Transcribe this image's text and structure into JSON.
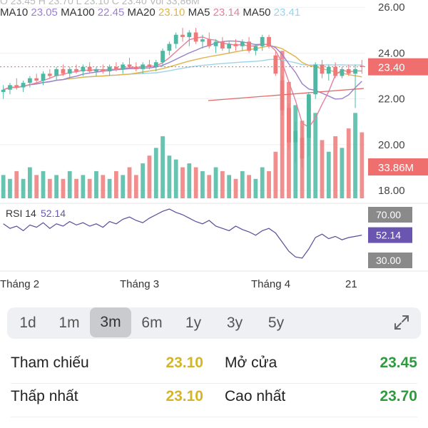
{
  "ohlc_legend": "O 23.45  H 23.70  L 23.10  C 23.40  Vol 33,86M",
  "ma_legend": [
    {
      "label": "MA10",
      "value": "23.05",
      "color": "#9b7fd0"
    },
    {
      "label": "MA100",
      "value": "22.45",
      "color": "#9b7fd0"
    },
    {
      "label": "MA20",
      "value": "23.10",
      "color": "#e0b24a"
    },
    {
      "label": "MA5",
      "value": "23.14",
      "color": "#e77f9a"
    },
    {
      "label": "MA50",
      "value": "23.41",
      "color": "#9ed3ea"
    }
  ],
  "price_axis": [
    "26.00",
    "24.00",
    "22.00",
    "20.00",
    "18.00"
  ],
  "current_price": "23.40",
  "volume_badge": "33.86M",
  "rsi": {
    "label": "RSI 14",
    "value": "52.14",
    "levels": [
      "70.00",
      "30.00"
    ]
  },
  "time_axis": [
    "Tháng 2",
    "Tháng 3",
    "Tháng 4",
    "21"
  ],
  "periods": [
    {
      "label": "1d",
      "active": false
    },
    {
      "label": "1m",
      "active": false
    },
    {
      "label": "3m",
      "active": true
    },
    {
      "label": "6m",
      "active": false
    },
    {
      "label": "1y",
      "active": false
    },
    {
      "label": "3y",
      "active": false
    },
    {
      "label": "5y",
      "active": false
    }
  ],
  "stats": {
    "ref_label": "Tham chiếu",
    "ref_value": "23.10",
    "open_label": "Mở cửa",
    "open_value": "23.45",
    "low_label": "Thấp nhất",
    "low_value": "23.10",
    "high_label": "Cao nhất",
    "high_value": "23.70"
  },
  "colors": {
    "up": "#4fb8a3",
    "down": "#ef7a7a",
    "rsi_line": "#5b4b9a",
    "price_badge": "#ef6f6f",
    "rsi_badge": "#6a55b0",
    "gray_badge": "#8a8a8a",
    "yellow": "#d4b52a",
    "green": "#2e9b3e"
  },
  "chart_data": {
    "type": "candlestick",
    "y_range": [
      18,
      26.5
    ],
    "candles": [
      {
        "o": 22.3,
        "h": 22.6,
        "l": 22.0,
        "c": 22.4
      },
      {
        "o": 22.4,
        "h": 22.7,
        "l": 22.2,
        "c": 22.6
      },
      {
        "o": 22.6,
        "h": 22.9,
        "l": 22.4,
        "c": 22.5
      },
      {
        "o": 22.5,
        "h": 22.8,
        "l": 22.3,
        "c": 22.7
      },
      {
        "o": 22.7,
        "h": 23.0,
        "l": 22.5,
        "c": 22.9
      },
      {
        "o": 22.9,
        "h": 23.1,
        "l": 22.7,
        "c": 22.8
      },
      {
        "o": 22.8,
        "h": 23.2,
        "l": 22.6,
        "c": 23.1
      },
      {
        "o": 23.1,
        "h": 23.3,
        "l": 22.9,
        "c": 23.0
      },
      {
        "o": 23.0,
        "h": 23.4,
        "l": 22.8,
        "c": 23.3
      },
      {
        "o": 23.3,
        "h": 23.5,
        "l": 23.0,
        "c": 23.1
      },
      {
        "o": 23.1,
        "h": 23.4,
        "l": 22.9,
        "c": 23.3
      },
      {
        "o": 23.3,
        "h": 23.5,
        "l": 23.1,
        "c": 23.2
      },
      {
        "o": 23.2,
        "h": 23.5,
        "l": 23.0,
        "c": 23.4
      },
      {
        "o": 23.4,
        "h": 23.6,
        "l": 23.1,
        "c": 23.2
      },
      {
        "o": 23.2,
        "h": 23.4,
        "l": 23.0,
        "c": 23.3
      },
      {
        "o": 23.3,
        "h": 23.5,
        "l": 23.1,
        "c": 23.2
      },
      {
        "o": 23.2,
        "h": 23.5,
        "l": 23.0,
        "c": 23.4
      },
      {
        "o": 23.4,
        "h": 23.6,
        "l": 23.2,
        "c": 23.3
      },
      {
        "o": 23.3,
        "h": 23.6,
        "l": 23.1,
        "c": 23.5
      },
      {
        "o": 23.5,
        "h": 23.8,
        "l": 23.3,
        "c": 23.4
      },
      {
        "o": 23.4,
        "h": 23.6,
        "l": 23.2,
        "c": 23.3
      },
      {
        "o": 23.3,
        "h": 23.6,
        "l": 23.1,
        "c": 23.5
      },
      {
        "o": 23.5,
        "h": 23.7,
        "l": 23.3,
        "c": 23.4
      },
      {
        "o": 23.4,
        "h": 23.7,
        "l": 23.2,
        "c": 23.6
      },
      {
        "o": 23.6,
        "h": 24.2,
        "l": 23.4,
        "c": 24.1
      },
      {
        "o": 24.1,
        "h": 24.5,
        "l": 23.9,
        "c": 24.4
      },
      {
        "o": 24.4,
        "h": 24.9,
        "l": 24.2,
        "c": 24.8
      },
      {
        "o": 24.8,
        "h": 25.1,
        "l": 24.5,
        "c": 24.7
      },
      {
        "o": 24.7,
        "h": 25.0,
        "l": 24.3,
        "c": 24.9
      },
      {
        "o": 24.9,
        "h": 25.1,
        "l": 24.4,
        "c": 24.5
      },
      {
        "o": 24.5,
        "h": 24.8,
        "l": 24.2,
        "c": 24.6
      },
      {
        "o": 24.6,
        "h": 24.9,
        "l": 24.2,
        "c": 24.3
      },
      {
        "o": 24.3,
        "h": 24.6,
        "l": 24.0,
        "c": 24.5
      },
      {
        "o": 24.5,
        "h": 24.7,
        "l": 24.1,
        "c": 24.2
      },
      {
        "o": 24.2,
        "h": 24.5,
        "l": 24.0,
        "c": 24.4
      },
      {
        "o": 24.4,
        "h": 24.6,
        "l": 24.1,
        "c": 24.3
      },
      {
        "o": 24.3,
        "h": 24.6,
        "l": 24.1,
        "c": 24.5
      },
      {
        "o": 24.5,
        "h": 24.7,
        "l": 24.0,
        "c": 24.1
      },
      {
        "o": 24.1,
        "h": 24.4,
        "l": 23.9,
        "c": 24.3
      },
      {
        "o": 24.3,
        "h": 24.8,
        "l": 24.1,
        "c": 24.7
      },
      {
        "o": 24.7,
        "h": 24.8,
        "l": 24.2,
        "c": 24.3
      },
      {
        "o": 23.9,
        "h": 24.1,
        "l": 23.0,
        "c": 23.1
      },
      {
        "o": 22.8,
        "h": 23.0,
        "l": 21.3,
        "c": 21.5
      },
      {
        "o": 21.6,
        "h": 21.8,
        "l": 19.8,
        "c": 20.1
      },
      {
        "o": 20.1,
        "h": 21.0,
        "l": 19.2,
        "c": 20.6
      },
      {
        "o": 20.3,
        "h": 20.8,
        "l": 19.0,
        "c": 19.4
      },
      {
        "o": 20.3,
        "h": 22.3,
        "l": 19.5,
        "c": 22.2
      },
      {
        "o": 22.2,
        "h": 23.6,
        "l": 22.0,
        "c": 23.5
      },
      {
        "o": 23.5,
        "h": 23.7,
        "l": 22.9,
        "c": 23.1
      },
      {
        "o": 23.1,
        "h": 23.5,
        "l": 22.8,
        "c": 23.4
      },
      {
        "o": 23.4,
        "h": 23.6,
        "l": 22.9,
        "c": 23.0
      },
      {
        "o": 23.0,
        "h": 23.4,
        "l": 22.9,
        "c": 23.3
      },
      {
        "o": 23.3,
        "h": 23.5,
        "l": 23.0,
        "c": 23.1
      },
      {
        "o": 23.1,
        "h": 23.5,
        "l": 21.6,
        "c": 23.3
      },
      {
        "o": 23.45,
        "h": 23.7,
        "l": 23.1,
        "c": 23.4
      }
    ],
    "volume": [
      6,
      5,
      7,
      5,
      8,
      6,
      7,
      5,
      6,
      5,
      7,
      5,
      6,
      5,
      7,
      6,
      5,
      7,
      6,
      8,
      6,
      9,
      11,
      13,
      16,
      11,
      10,
      8,
      9,
      8,
      7,
      6,
      8,
      7,
      6,
      5,
      7,
      6,
      5,
      8,
      7,
      12,
      38,
      30,
      24,
      20,
      26,
      22,
      15,
      12,
      16,
      13,
      18,
      22,
      17
    ],
    "rsi": [
      62,
      58,
      60,
      56,
      61,
      59,
      63,
      58,
      62,
      60,
      64,
      61,
      63,
      60,
      62,
      59,
      64,
      62,
      66,
      68,
      65,
      63,
      67,
      70,
      73,
      75,
      72,
      70,
      67,
      64,
      62,
      65,
      60,
      58,
      56,
      60,
      57,
      55,
      52,
      56,
      58,
      54,
      46,
      38,
      33,
      32,
      40,
      50,
      53,
      49,
      51,
      48,
      50,
      51,
      52.14
    ]
  }
}
